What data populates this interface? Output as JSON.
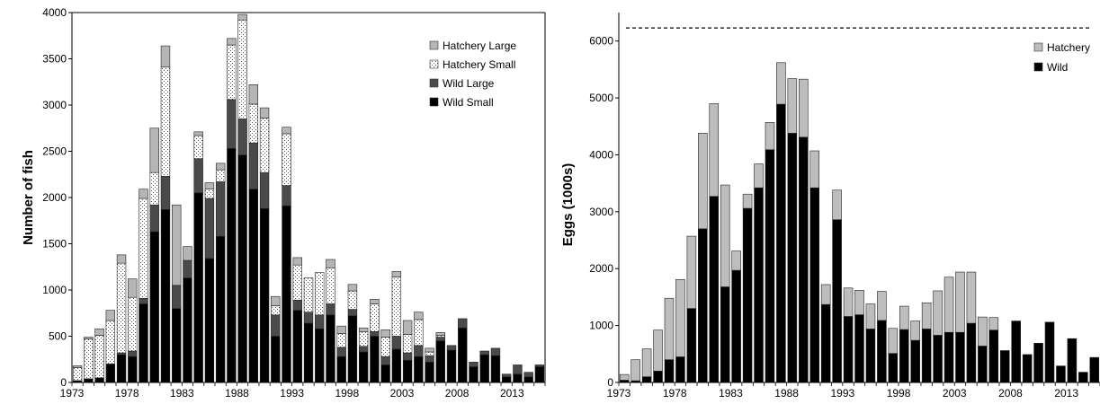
{
  "chart_data": [
    {
      "type": "bar",
      "stacked": true,
      "ylabel": "Number of fish",
      "xlabel": "",
      "ylim": [
        0,
        4000
      ],
      "yticks": [
        0,
        500,
        1000,
        1500,
        2000,
        2500,
        3000,
        3500,
        4000
      ],
      "x_tick_labels": [
        "1973",
        "1978",
        "1983",
        "1988",
        "1993",
        "1998",
        "2003",
        "2008",
        "2013"
      ],
      "legend_position": "top-right",
      "categories": [
        1973,
        1974,
        1975,
        1976,
        1977,
        1978,
        1979,
        1980,
        1981,
        1982,
        1983,
        1984,
        1985,
        1986,
        1987,
        1988,
        1989,
        1990,
        1991,
        1992,
        1993,
        1994,
        1995,
        1996,
        1997,
        1998,
        1999,
        2000,
        2001,
        2002,
        2003,
        2004,
        2005,
        2006,
        2007,
        2008,
        2009,
        2010,
        2011,
        2012,
        2013,
        2014,
        2015
      ],
      "series": [
        {
          "name": "Wild Small",
          "color": "#000000",
          "pattern": "solid",
          "values": [
            20,
            40,
            50,
            200,
            300,
            280,
            850,
            1630,
            1870,
            800,
            1130,
            2050,
            1340,
            1580,
            2530,
            2460,
            2090,
            1880,
            500,
            1910,
            780,
            640,
            580,
            730,
            280,
            720,
            330,
            500,
            190,
            360,
            240,
            280,
            220,
            450,
            350,
            590,
            170,
            300,
            290,
            60,
            90,
            60,
            170
          ]
        },
        {
          "name": "Wild Large",
          "color": "#4a4a4a",
          "pattern": "solid",
          "values": [
            0,
            0,
            0,
            0,
            20,
            60,
            60,
            290,
            360,
            250,
            190,
            370,
            650,
            590,
            530,
            390,
            500,
            390,
            230,
            220,
            110,
            120,
            150,
            120,
            100,
            70,
            60,
            50,
            90,
            140,
            80,
            120,
            70,
            40,
            50,
            100,
            50,
            40,
            80,
            30,
            100,
            50,
            20
          ]
        },
        {
          "name": "Hatchery Small",
          "color": "#ffffff",
          "pattern": "dots",
          "values": [
            140,
            430,
            460,
            470,
            970,
            580,
            1080,
            350,
            1180,
            0,
            0,
            250,
            100,
            130,
            590,
            1070,
            420,
            590,
            100,
            560,
            380,
            370,
            460,
            390,
            150,
            200,
            160,
            300,
            210,
            640,
            200,
            280,
            40,
            20,
            0,
            0,
            0,
            0,
            0,
            0,
            0,
            0,
            0
          ]
        },
        {
          "name": "Hatchery Large",
          "color": "#b5b5b5",
          "pattern": "solid",
          "values": [
            20,
            20,
            70,
            110,
            90,
            200,
            100,
            480,
            230,
            870,
            150,
            40,
            70,
            70,
            70,
            60,
            210,
            110,
            100,
            70,
            80,
            0,
            0,
            90,
            80,
            70,
            40,
            50,
            80,
            60,
            150,
            80,
            40,
            30,
            0,
            0,
            0,
            0,
            0,
            0,
            0,
            0,
            0
          ]
        }
      ]
    },
    {
      "type": "bar",
      "stacked": true,
      "ylabel": "Eggs (1000s)",
      "xlabel": "",
      "ylim": [
        0,
        6500
      ],
      "yticks": [
        0,
        1000,
        2000,
        3000,
        4000,
        5000,
        6000
      ],
      "x_tick_labels": [
        "1973",
        "1978",
        "1983",
        "1988",
        "1993",
        "1998",
        "2003",
        "2008",
        "2013"
      ],
      "legend_position": "top-right",
      "reference_line": {
        "value": 6230,
        "style": "dashed"
      },
      "categories": [
        1973,
        1974,
        1975,
        1976,
        1977,
        1978,
        1979,
        1980,
        1981,
        1982,
        1983,
        1984,
        1985,
        1986,
        1987,
        1988,
        1989,
        1990,
        1991,
        1992,
        1993,
        1994,
        1995,
        1996,
        1997,
        1998,
        1999,
        2000,
        2001,
        2002,
        2003,
        2004,
        2005,
        2006,
        2007,
        2008,
        2009,
        2010,
        2011,
        2012,
        2013,
        2014,
        2015
      ],
      "series": [
        {
          "name": "Wild",
          "color": "#000000",
          "values": [
            40,
            30,
            100,
            200,
            400,
            450,
            1300,
            2700,
            3270,
            1680,
            1970,
            3060,
            3420,
            4090,
            4890,
            4380,
            4310,
            3420,
            1370,
            2860,
            1160,
            1190,
            940,
            1090,
            510,
            930,
            740,
            940,
            830,
            880,
            880,
            1040,
            640,
            920,
            560,
            1080,
            490,
            690,
            1060,
            290,
            770,
            180,
            440
          ]
        },
        {
          "name": "Hatchery",
          "color": "#bdbdbd",
          "values": [
            100,
            370,
            490,
            720,
            1080,
            1360,
            1270,
            1680,
            1630,
            1790,
            340,
            250,
            420,
            480,
            730,
            960,
            1020,
            650,
            350,
            520,
            500,
            430,
            440,
            510,
            440,
            410,
            340,
            460,
            780,
            970,
            1060,
            900,
            510,
            220,
            0,
            0,
            0,
            0,
            0,
            0,
            0,
            0,
            0
          ]
        }
      ]
    }
  ]
}
